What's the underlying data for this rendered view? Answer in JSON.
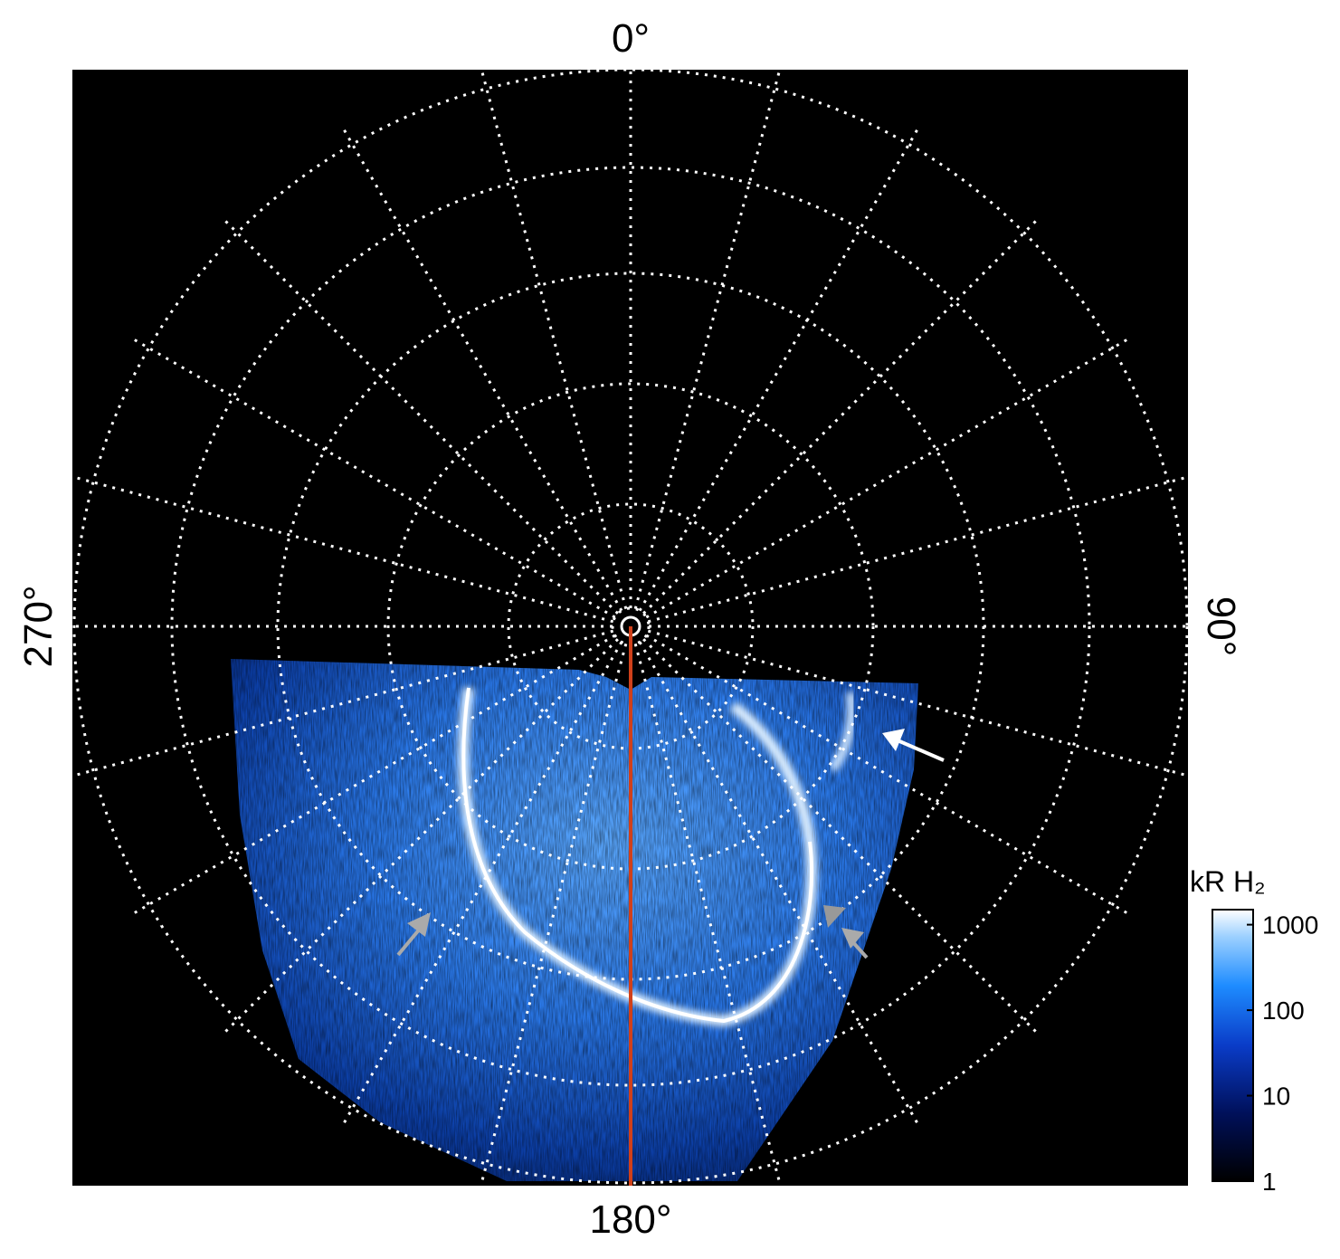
{
  "map": {
    "labels": {
      "top": "0°",
      "right": "90°",
      "bottom": "180°",
      "left": "270°"
    }
  },
  "colorbar": {
    "title": "kR H₂",
    "log": true,
    "lim": [
      1,
      1500
    ],
    "ticks": [
      1,
      10,
      100,
      1000
    ]
  }
}
